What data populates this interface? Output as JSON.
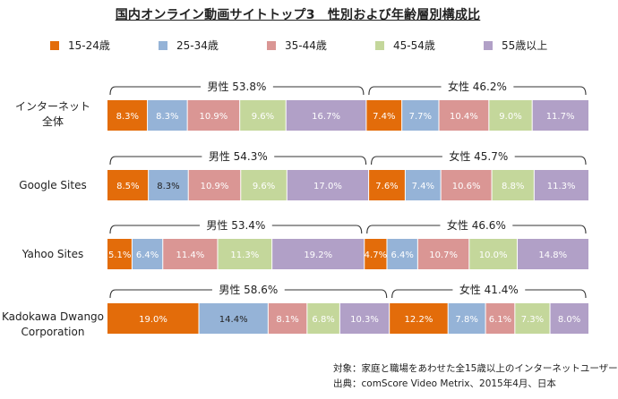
{
  "title": "国内オンライン動画サイトトップ3　性別および年齢層別構成比",
  "legend": [
    {
      "label": "15-24歳",
      "color": "#e36c0a"
    },
    {
      "label": "25-34歳",
      "color": "#95b3d7"
    },
    {
      "label": "35-44歳",
      "color": "#da9694"
    },
    {
      "label": "45-54歳",
      "color": "#c4d79b"
    },
    {
      "label": "55歳以上",
      "color": "#b1a0c7"
    }
  ],
  "rows": [
    {
      "label_lines": [
        "インターネット",
        "全体"
      ],
      "male": "男性 53.8%",
      "female": "女性 46.2%"
    },
    {
      "label_lines": [
        "Google Sites"
      ],
      "male": "男性 54.3%",
      "female": "女性 45.7%"
    },
    {
      "label_lines": [
        "Yahoo Sites"
      ],
      "male": "男性 53.4%",
      "female": "女性 46.6%"
    },
    {
      "label_lines": [
        "Kadokawa Dwango",
        "Corporation"
      ],
      "male": "男性 58.6%",
      "female": "女性 41.4%"
    }
  ],
  "chart_data": {
    "type": "bar",
    "orientation": "horizontal",
    "stacked": "100%",
    "title": "国内オンライン動画サイトトップ3　性別および年齢層別構成比",
    "categories": [
      "インターネット全体",
      "Google Sites",
      "Yahoo Sites",
      "Kadokawa Dwango Corporation"
    ],
    "series": [
      {
        "name": "男性 15-24歳",
        "color": "#e36c0a",
        "values": [
          8.3,
          8.5,
          5.1,
          19.0
        ]
      },
      {
        "name": "男性 25-34歳",
        "color": "#95b3d7",
        "values": [
          8.3,
          8.3,
          6.4,
          14.4
        ]
      },
      {
        "name": "男性 35-44歳",
        "color": "#da9694",
        "values": [
          10.9,
          10.9,
          11.4,
          8.1
        ]
      },
      {
        "name": "男性 45-54歳",
        "color": "#c4d79b",
        "values": [
          9.6,
          9.6,
          11.3,
          6.8
        ]
      },
      {
        "name": "男性 55歳以上",
        "color": "#b1a0c7",
        "values": [
          16.7,
          17.0,
          19.2,
          10.3
        ]
      },
      {
        "name": "女性 15-24歳",
        "color": "#e36c0a",
        "values": [
          7.4,
          7.6,
          4.7,
          12.2
        ]
      },
      {
        "name": "女性 25-34歳",
        "color": "#95b3d7",
        "values": [
          7.7,
          7.4,
          6.4,
          7.8
        ]
      },
      {
        "name": "女性 35-44歳",
        "color": "#da9694",
        "values": [
          10.4,
          10.6,
          10.7,
          6.1
        ]
      },
      {
        "name": "女性 45-54歳",
        "color": "#c4d79b",
        "values": [
          9.0,
          8.8,
          10.0,
          7.3
        ]
      },
      {
        "name": "女性 55歳以上",
        "color": "#b1a0c7",
        "values": [
          11.7,
          11.3,
          14.8,
          8.0
        ]
      }
    ],
    "gender_totals": {
      "male": [
        53.8,
        54.3,
        53.4,
        58.6
      ],
      "female": [
        46.2,
        45.7,
        46.6,
        41.4
      ]
    },
    "value_labels": [
      [
        "8.3%",
        "8.3%",
        "10.9%",
        "9.6%",
        "16.7%",
        "7.4%",
        "7.7%",
        "10.4%",
        "9.0%",
        "11.7%"
      ],
      [
        "8.5%",
        "8.3%",
        "10.9%",
        "9.6%",
        "17.0%",
        "7.6%",
        "7.4%",
        "10.6%",
        "8.8%",
        "11.3%"
      ],
      [
        "5.1%",
        "6.4%",
        "11.4%",
        "11.3%",
        "19.2%",
        "4.7%",
        "6.4%",
        "10.7%",
        "10.0%",
        "14.8%"
      ],
      [
        "19.0%",
        "14.4%",
        "8.1%",
        "6.8%",
        "10.3%",
        "12.2%",
        "7.8%",
        "6.1%",
        "7.3%",
        "8.0%"
      ]
    ],
    "value_label_colors": [
      [
        "#ffffff",
        "#ffffff",
        "#ffffff",
        "#ffffff",
        "#ffffff",
        "#ffffff",
        "#ffffff",
        "#ffffff",
        "#ffffff",
        "#ffffff"
      ],
      [
        "#ffffff",
        "#222222",
        "#ffffff",
        "#ffffff",
        "#ffffff",
        "#ffffff",
        "#ffffff",
        "#ffffff",
        "#ffffff",
        "#ffffff"
      ],
      [
        "#ffffff",
        "#ffffff",
        "#ffffff",
        "#ffffff",
        "#ffffff",
        "#ffffff",
        "#ffffff",
        "#ffffff",
        "#ffffff",
        "#ffffff"
      ],
      [
        "#ffffff",
        "#222222",
        "#ffffff",
        "#ffffff",
        "#ffffff",
        "#ffffff",
        "#ffffff",
        "#ffffff",
        "#ffffff",
        "#ffffff"
      ]
    ],
    "xlim": [
      0,
      100
    ],
    "grid": false,
    "legend_position": "top"
  },
  "footnotes": [
    "対象：家庭と職場をあわせた全15歳以上のインターネットユーザー",
    "出典：comScore Video Metrix、2015年4月、日本"
  ]
}
